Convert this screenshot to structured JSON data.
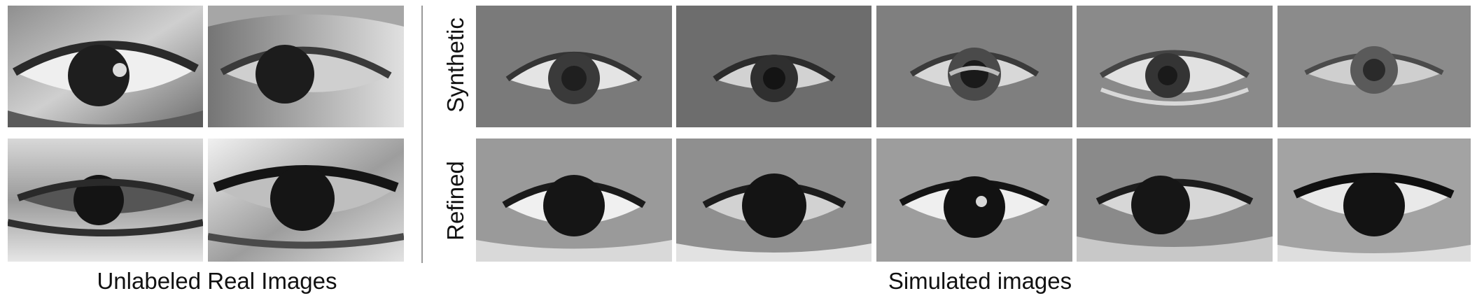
{
  "left_panel": {
    "caption": "Unlabeled Real Images",
    "tiles": [
      {
        "name": "real-eye-1",
        "style": "real"
      },
      {
        "name": "real-eye-2",
        "style": "real"
      },
      {
        "name": "real-eye-3",
        "style": "real"
      },
      {
        "name": "real-eye-4",
        "style": "real"
      }
    ]
  },
  "right_panel": {
    "caption": "Simulated images",
    "rows": [
      {
        "label": "Synthetic",
        "tiles": [
          "synthetic-eye-1",
          "synthetic-eye-2",
          "synthetic-eye-3",
          "synthetic-eye-4",
          "synthetic-eye-5"
        ]
      },
      {
        "label": "Refined",
        "tiles": [
          "refined-eye-1",
          "refined-eye-2",
          "refined-eye-3",
          "refined-eye-4",
          "refined-eye-5"
        ]
      }
    ]
  }
}
